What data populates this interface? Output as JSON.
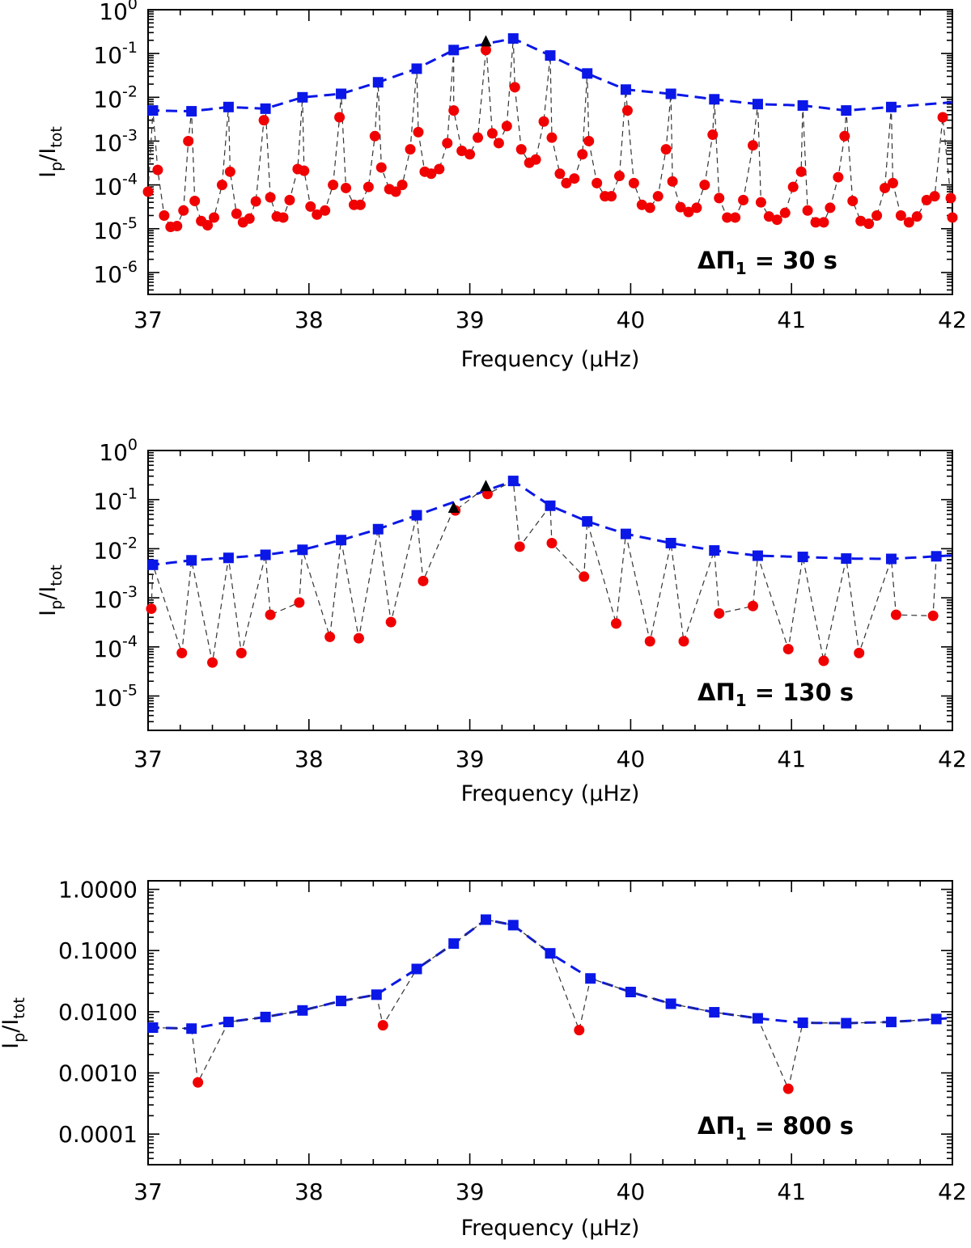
{
  "chart_data": [
    {
      "type": "scatter",
      "xlabel": "Frequency (μHz)",
      "ylabel": "Ip/Itot",
      "ylabel_main": "I",
      "ylabel_sub1": "p",
      "ylabel_slash": "/I",
      "ylabel_sub2": "tot",
      "xlim": [
        37,
        42
      ],
      "ylim_log": [
        -6.5,
        0
      ],
      "xticks": [
        37,
        38,
        39,
        40,
        41,
        42
      ],
      "yticks": [
        {
          "exp": 0,
          "base": "10",
          "sup": "0"
        },
        {
          "exp": -1,
          "base": "10",
          "sup": "-1"
        },
        {
          "exp": -2,
          "base": "10",
          "sup": "-2"
        },
        {
          "exp": -3,
          "base": "10",
          "sup": "-3"
        },
        {
          "exp": -4,
          "base": "10",
          "sup": "-4"
        },
        {
          "exp": -5,
          "base": "10",
          "sup": "-5"
        },
        {
          "exp": -6,
          "base": "10",
          "sup": "-6"
        }
      ],
      "annotation": {
        "symbol": "ΔΠ",
        "sub": "1",
        "text": " = 30 s"
      },
      "envelope_color": "#0a17e6",
      "pmode_color": "#0a17e6",
      "mixed_color": "#f00000",
      "triangles": [
        {
          "x": 39.1,
          "y": 0.18
        }
      ],
      "pmodes": [
        {
          "x": 37.03,
          "y": 0.005
        },
        {
          "x": 37.27,
          "y": 0.0048
        },
        {
          "x": 37.5,
          "y": 0.006
        },
        {
          "x": 37.73,
          "y": 0.0055
        },
        {
          "x": 37.96,
          "y": 0.01
        },
        {
          "x": 38.2,
          "y": 0.012
        },
        {
          "x": 38.43,
          "y": 0.022
        },
        {
          "x": 38.67,
          "y": 0.045
        },
        {
          "x": 38.9,
          "y": 0.12
        },
        {
          "x": 39.27,
          "y": 0.22
        },
        {
          "x": 39.5,
          "y": 0.09
        },
        {
          "x": 39.73,
          "y": 0.035
        },
        {
          "x": 39.97,
          "y": 0.015
        },
        {
          "x": 40.25,
          "y": 0.012
        },
        {
          "x": 40.52,
          "y": 0.009
        },
        {
          "x": 40.79,
          "y": 0.007
        },
        {
          "x": 41.07,
          "y": 0.0065
        },
        {
          "x": 41.34,
          "y": 0.005
        },
        {
          "x": 41.62,
          "y": 0.006
        }
      ],
      "mixed": [
        {
          "x": 37.0,
          "y": 7e-05
        },
        {
          "x": 37.06,
          "y": 0.00022
        },
        {
          "x": 37.1,
          "y": 2e-05
        },
        {
          "x": 37.14,
          "y": 1.1e-05
        },
        {
          "x": 37.18,
          "y": 1.15e-05
        },
        {
          "x": 37.22,
          "y": 2.6e-05
        },
        {
          "x": 37.25,
          "y": 0.001
        },
        {
          "x": 37.29,
          "y": 4.3e-05
        },
        {
          "x": 37.33,
          "y": 1.5e-05
        },
        {
          "x": 37.37,
          "y": 1.2e-05
        },
        {
          "x": 37.41,
          "y": 1.8e-05
        },
        {
          "x": 37.46,
          "y": 0.0001
        },
        {
          "x": 37.51,
          "y": 0.0002
        },
        {
          "x": 37.55,
          "y": 2.2e-05
        },
        {
          "x": 37.59,
          "y": 1.4e-05
        },
        {
          "x": 37.63,
          "y": 1.7e-05
        },
        {
          "x": 37.67,
          "y": 4.2e-05
        },
        {
          "x": 37.72,
          "y": 0.003
        },
        {
          "x": 37.76,
          "y": 5.2e-05
        },
        {
          "x": 37.8,
          "y": 1.9e-05
        },
        {
          "x": 37.84,
          "y": 1.8e-05
        },
        {
          "x": 37.88,
          "y": 4.5e-05
        },
        {
          "x": 37.93,
          "y": 0.00023
        },
        {
          "x": 37.97,
          "y": 0.00021
        },
        {
          "x": 38.01,
          "y": 3.2e-05
        },
        {
          "x": 38.05,
          "y": 2.1e-05
        },
        {
          "x": 38.1,
          "y": 2.6e-05
        },
        {
          "x": 38.15,
          "y": 0.0001
        },
        {
          "x": 38.19,
          "y": 0.0035
        },
        {
          "x": 38.23,
          "y": 8.5e-05
        },
        {
          "x": 38.28,
          "y": 3.5e-05
        },
        {
          "x": 38.32,
          "y": 3.5e-05
        },
        {
          "x": 38.37,
          "y": 9e-05
        },
        {
          "x": 38.41,
          "y": 0.0013
        },
        {
          "x": 38.45,
          "y": 0.00025
        },
        {
          "x": 38.5,
          "y": 8e-05
        },
        {
          "x": 38.54,
          "y": 7e-05
        },
        {
          "x": 38.58,
          "y": 0.0001
        },
        {
          "x": 38.63,
          "y": 0.00065
        },
        {
          "x": 38.68,
          "y": 0.0016
        },
        {
          "x": 38.72,
          "y": 0.0002
        },
        {
          "x": 38.76,
          "y": 0.00018
        },
        {
          "x": 38.81,
          "y": 0.00023
        },
        {
          "x": 38.86,
          "y": 0.0009
        },
        {
          "x": 38.9,
          "y": 0.005
        },
        {
          "x": 38.95,
          "y": 0.0006
        },
        {
          "x": 39.0,
          "y": 0.0005
        },
        {
          "x": 39.05,
          "y": 0.0012
        },
        {
          "x": 39.1,
          "y": 0.12
        },
        {
          "x": 39.14,
          "y": 0.0015
        },
        {
          "x": 39.18,
          "y": 0.0009
        },
        {
          "x": 39.23,
          "y": 0.0022
        },
        {
          "x": 39.28,
          "y": 0.017
        },
        {
          "x": 39.32,
          "y": 0.00065
        },
        {
          "x": 39.37,
          "y": 0.00032
        },
        {
          "x": 39.41,
          "y": 0.00038
        },
        {
          "x": 39.46,
          "y": 0.0028
        },
        {
          "x": 39.51,
          "y": 0.0012
        },
        {
          "x": 39.56,
          "y": 0.00018
        },
        {
          "x": 39.6,
          "y": 0.00011
        },
        {
          "x": 39.65,
          "y": 0.00014
        },
        {
          "x": 39.7,
          "y": 0.0005
        },
        {
          "x": 39.74,
          "y": 0.001
        },
        {
          "x": 39.79,
          "y": 0.00011
        },
        {
          "x": 39.84,
          "y": 5.5e-05
        },
        {
          "x": 39.88,
          "y": 5.5e-05
        },
        {
          "x": 39.93,
          "y": 0.00016
        },
        {
          "x": 39.98,
          "y": 0.005
        },
        {
          "x": 40.02,
          "y": 0.00011
        },
        {
          "x": 40.07,
          "y": 3.5e-05
        },
        {
          "x": 40.12,
          "y": 3e-05
        },
        {
          "x": 40.17,
          "y": 5.5e-05
        },
        {
          "x": 40.22,
          "y": 0.00065
        },
        {
          "x": 40.26,
          "y": 0.00012
        },
        {
          "x": 40.31,
          "y": 3.1e-05
        },
        {
          "x": 40.36,
          "y": 2.4e-05
        },
        {
          "x": 40.41,
          "y": 3e-05
        },
        {
          "x": 40.46,
          "y": 0.0001
        },
        {
          "x": 40.51,
          "y": 0.0014
        },
        {
          "x": 40.55,
          "y": 5e-05
        },
        {
          "x": 40.6,
          "y": 1.8e-05
        },
        {
          "x": 40.65,
          "y": 1.8e-05
        },
        {
          "x": 40.7,
          "y": 4.5e-05
        },
        {
          "x": 40.76,
          "y": 0.0008
        },
        {
          "x": 40.81,
          "y": 4e-05
        },
        {
          "x": 40.86,
          "y": 1.9e-05
        },
        {
          "x": 40.91,
          "y": 1.6e-05
        },
        {
          "x": 40.96,
          "y": 2.3e-05
        },
        {
          "x": 41.01,
          "y": 9e-05
        },
        {
          "x": 41.06,
          "y": 0.0002
        },
        {
          "x": 41.1,
          "y": 2.6e-05
        },
        {
          "x": 41.15,
          "y": 1.4e-05
        },
        {
          "x": 41.2,
          "y": 1.4e-05
        },
        {
          "x": 41.24,
          "y": 3e-05
        },
        {
          "x": 41.29,
          "y": 0.00015
        },
        {
          "x": 41.33,
          "y": 0.0013
        },
        {
          "x": 41.38,
          "y": 4.3e-05
        },
        {
          "x": 41.43,
          "y": 1.5e-05
        },
        {
          "x": 41.48,
          "y": 1.3e-05
        },
        {
          "x": 41.53,
          "y": 2e-05
        },
        {
          "x": 41.58,
          "y": 8.5e-05
        },
        {
          "x": 41.63,
          "y": 0.00011
        },
        {
          "x": 41.68,
          "y": 2e-05
        },
        {
          "x": 41.73,
          "y": 1.4e-05
        },
        {
          "x": 41.78,
          "y": 1.9e-05
        },
        {
          "x": 41.84,
          "y": 4.5e-05
        },
        {
          "x": 41.89,
          "y": 5.5e-05
        },
        {
          "x": 41.94,
          "y": 0.0035
        },
        {
          "x": 41.99,
          "y": 5e-05
        },
        {
          "x": 42.0,
          "y": 1.8e-05
        }
      ]
    },
    {
      "type": "scatter",
      "xlabel": "Frequency (μHz)",
      "ylabel": "Ip/Itot",
      "ylabel_main": "I",
      "ylabel_sub1": "p",
      "ylabel_slash": "/I",
      "ylabel_sub2": "tot",
      "xlim": [
        37,
        42
      ],
      "ylim_log": [
        -5.7,
        0
      ],
      "xticks": [
        37,
        38,
        39,
        40,
        41,
        42
      ],
      "yticks": [
        {
          "exp": 0,
          "base": "10",
          "sup": "0"
        },
        {
          "exp": -1,
          "base": "10",
          "sup": "-1"
        },
        {
          "exp": -2,
          "base": "10",
          "sup": "-2"
        },
        {
          "exp": -3,
          "base": "10",
          "sup": "-3"
        },
        {
          "exp": -4,
          "base": "10",
          "sup": "-4"
        },
        {
          "exp": -5,
          "base": "10",
          "sup": "-5"
        }
      ],
      "annotation": {
        "symbol": "ΔΠ",
        "sub": "1",
        "text": " = 130 s"
      },
      "envelope_color": "#0a17e6",
      "pmode_color": "#0a17e6",
      "mixed_color": "#f00000",
      "triangles": [
        {
          "x": 38.9,
          "y": 0.065
        },
        {
          "x": 39.1,
          "y": 0.18
        }
      ],
      "pmodes": [
        {
          "x": 37.03,
          "y": 0.0047
        },
        {
          "x": 37.27,
          "y": 0.0058
        },
        {
          "x": 37.5,
          "y": 0.0065
        },
        {
          "x": 37.73,
          "y": 0.0075
        },
        {
          "x": 37.96,
          "y": 0.0095
        },
        {
          "x": 38.2,
          "y": 0.015
        },
        {
          "x": 38.43,
          "y": 0.025
        },
        {
          "x": 38.67,
          "y": 0.048
        },
        {
          "x": 39.27,
          "y": 0.24
        },
        {
          "x": 39.5,
          "y": 0.075
        },
        {
          "x": 39.73,
          "y": 0.036
        },
        {
          "x": 39.97,
          "y": 0.02
        },
        {
          "x": 40.25,
          "y": 0.013
        },
        {
          "x": 40.52,
          "y": 0.0092
        },
        {
          "x": 40.79,
          "y": 0.0072
        },
        {
          "x": 41.07,
          "y": 0.0068
        },
        {
          "x": 41.34,
          "y": 0.0063
        },
        {
          "x": 41.62,
          "y": 0.0062
        },
        {
          "x": 41.9,
          "y": 0.007
        }
      ],
      "mixed": [
        {
          "x": 37.02,
          "y": 0.0006
        },
        {
          "x": 37.21,
          "y": 7.5e-05
        },
        {
          "x": 37.4,
          "y": 4.8e-05
        },
        {
          "x": 37.58,
          "y": 7.5e-05
        },
        {
          "x": 37.76,
          "y": 0.00045
        },
        {
          "x": 37.94,
          "y": 0.0008
        },
        {
          "x": 38.13,
          "y": 0.00016
        },
        {
          "x": 38.31,
          "y": 0.00015
        },
        {
          "x": 38.51,
          "y": 0.00032
        },
        {
          "x": 38.71,
          "y": 0.0022
        },
        {
          "x": 38.91,
          "y": 0.06
        },
        {
          "x": 39.11,
          "y": 0.13
        },
        {
          "x": 39.31,
          "y": 0.011
        },
        {
          "x": 39.51,
          "y": 0.013
        },
        {
          "x": 39.71,
          "y": 0.0027
        },
        {
          "x": 39.91,
          "y": 0.0003
        },
        {
          "x": 40.12,
          "y": 0.00013
        },
        {
          "x": 40.33,
          "y": 0.00013
        },
        {
          "x": 40.55,
          "y": 0.00048
        },
        {
          "x": 40.76,
          "y": 0.00068
        },
        {
          "x": 40.98,
          "y": 9e-05
        },
        {
          "x": 41.2,
          "y": 5.2e-05
        },
        {
          "x": 41.42,
          "y": 7.5e-05
        },
        {
          "x": 41.65,
          "y": 0.00045
        },
        {
          "x": 41.88,
          "y": 0.00043
        }
      ]
    },
    {
      "type": "scatter",
      "xlabel": "Frequency (μHz)",
      "ylabel": "Ip/Itot",
      "ylabel_main": "I",
      "ylabel_sub1": "p",
      "ylabel_slash": "/I",
      "ylabel_sub2": "tot",
      "xlim": [
        37,
        42
      ],
      "ylim_log": [
        -4.5,
        0.14
      ],
      "xticks": [
        37,
        38,
        39,
        40,
        41,
        42
      ],
      "yticks": [
        {
          "exp": 0,
          "label": "1.0000"
        },
        {
          "exp": -1,
          "label": "0.1000"
        },
        {
          "exp": -2,
          "label": "0.0100"
        },
        {
          "exp": -3,
          "label": "0.0010"
        },
        {
          "exp": -4,
          "label": "0.0001"
        }
      ],
      "annotation": {
        "symbol": "ΔΠ",
        "sub": "1",
        "text": " = 800 s"
      },
      "envelope_color": "#0a17e6",
      "pmode_color": "#0a17e6",
      "mixed_color": "#f00000",
      "triangles": [],
      "pmodes": [
        {
          "x": 37.03,
          "y": 0.0055
        },
        {
          "x": 37.27,
          "y": 0.0053
        },
        {
          "x": 37.5,
          "y": 0.0068
        },
        {
          "x": 37.73,
          "y": 0.0082
        },
        {
          "x": 37.96,
          "y": 0.0105
        },
        {
          "x": 38.2,
          "y": 0.015
        },
        {
          "x": 38.42,
          "y": 0.019
        },
        {
          "x": 38.67,
          "y": 0.05
        },
        {
          "x": 38.9,
          "y": 0.13
        },
        {
          "x": 39.1,
          "y": 0.32
        },
        {
          "x": 39.27,
          "y": 0.26
        },
        {
          "x": 39.5,
          "y": 0.09
        },
        {
          "x": 39.75,
          "y": 0.035
        },
        {
          "x": 40.0,
          "y": 0.021
        },
        {
          "x": 40.25,
          "y": 0.0135
        },
        {
          "x": 40.52,
          "y": 0.0098
        },
        {
          "x": 40.79,
          "y": 0.0078
        },
        {
          "x": 41.07,
          "y": 0.0066
        },
        {
          "x": 41.34,
          "y": 0.0065
        },
        {
          "x": 41.62,
          "y": 0.0068
        },
        {
          "x": 41.9,
          "y": 0.0076
        }
      ],
      "mixed": [
        {
          "x": 37.31,
          "y": 0.0007
        },
        {
          "x": 38.46,
          "y": 0.006
        },
        {
          "x": 39.68,
          "y": 0.005
        },
        {
          "x": 40.98,
          "y": 0.00055
        }
      ]
    }
  ]
}
